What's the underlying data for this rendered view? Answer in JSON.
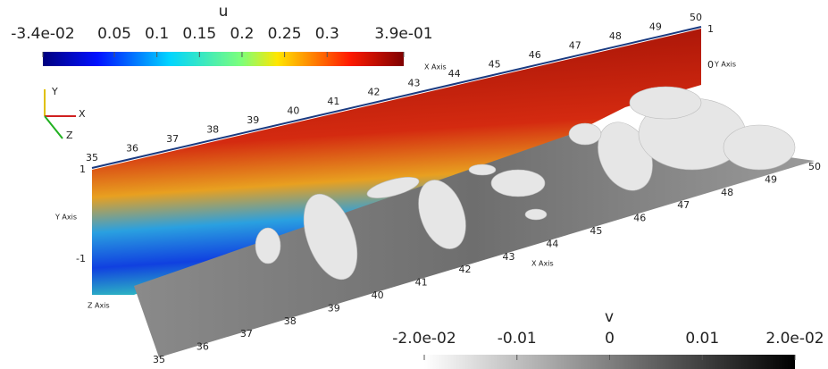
{
  "colorbar_u": {
    "title": "u",
    "ticks": [
      {
        "value": -0.034,
        "label": "-3.4e-02"
      },
      0.05,
      0.1,
      0.15,
      0.2,
      0.25,
      0.3,
      {
        "value": 0.39,
        "label": "3.9e-01"
      }
    ]
  },
  "colorbar_v": {
    "title": "v",
    "ticks": [
      {
        "value": -0.02,
        "label": "-2.0e-02"
      },
      -0.01,
      0,
      0.01,
      {
        "value": 0.02,
        "label": "2.0e-02"
      }
    ]
  },
  "axes": {
    "x_ticks_top": [
      35,
      36,
      37,
      38,
      39,
      40,
      41,
      42,
      43,
      44,
      45,
      46,
      47,
      48,
      49,
      50
    ],
    "x_ticks_bottom": [
      35,
      36,
      37,
      38,
      39,
      40,
      41,
      42,
      43,
      44,
      45,
      46,
      47,
      48,
      49,
      50
    ],
    "x_label_top": "X Axis",
    "x_label_bottom": "X Axis",
    "y_ticks_left": [
      1,
      -1
    ],
    "y_label_left": "Y Axis",
    "y_ticks_right": [
      1,
      0
    ],
    "y_label_right": "Y Axis",
    "z_label": "Z Axis"
  },
  "orientation": {
    "y": "Y",
    "x": "X",
    "z": "Z"
  }
}
